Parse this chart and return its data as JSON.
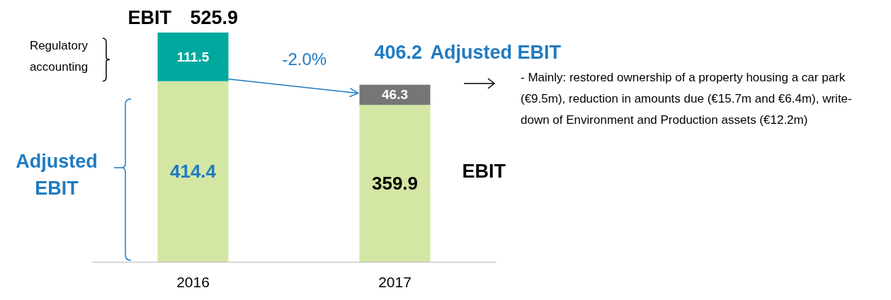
{
  "chart_data": {
    "type": "bar",
    "stacked": true,
    "categories": [
      "2016",
      "2017"
    ],
    "series": [
      {
        "color": "#d3e6a3",
        "values": [
          414.4,
          359.9
        ]
      },
      {
        "colors": [
          "#00a99d",
          "#767676"
        ],
        "values": [
          111.5,
          46.3
        ]
      }
    ],
    "data_labels": true,
    "totals": [
      "525.9",
      "406.2"
    ],
    "annotations": [
      "EBIT",
      "Regulatory accounting",
      "Adjusted EBIT",
      "-2.0%",
      "Adjusted EBIT",
      "EBIT",
      "- Mainly: restored ownership of a property housing a car park (€9.5m), reduction in amounts due (€15.7m and €6.4m), write-down of Environment and Production assets (€12.2m)"
    ]
  }
}
